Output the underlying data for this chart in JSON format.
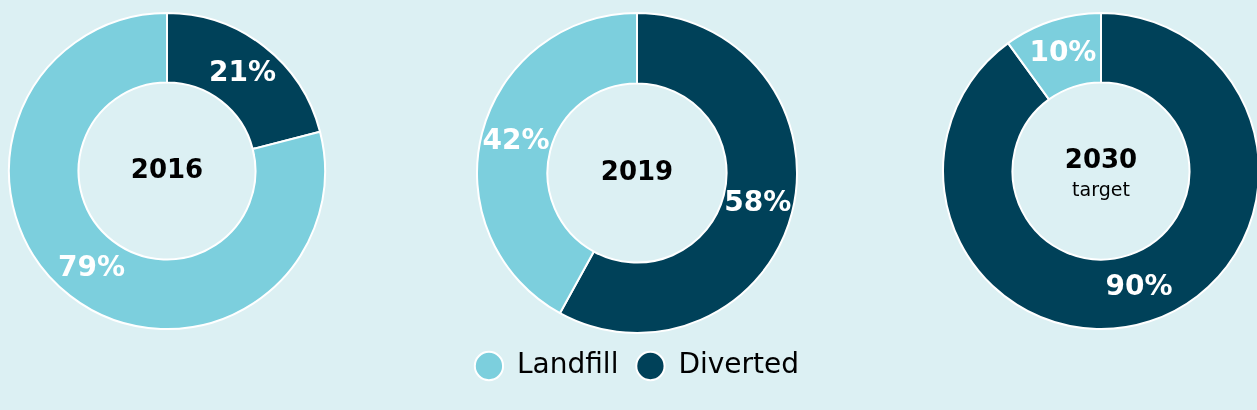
{
  "chart_data": [
    {
      "type": "donut",
      "title": "2016",
      "categories": [
        null,
        null
      ],
      "values": [
        21,
        79
      ],
      "colors": [
        "#004159",
        "#7ccfdd"
      ],
      "value_labels": [
        "21%",
        "79%"
      ]
    },
    {
      "type": "donut",
      "title": "2019",
      "categories": [
        "Diverted",
        "Landfill"
      ],
      "values": [
        58,
        42
      ],
      "colors": [
        "#004159",
        "#7ccfdd"
      ],
      "value_labels": [
        "58%",
        "42%"
      ],
      "legend": "bottom"
    },
    {
      "type": "donut",
      "title": "2030",
      "subtitle": "target",
      "categories": [
        null,
        null
      ],
      "values": [
        90,
        10
      ],
      "colors": [
        "#004159",
        "#7ccfdd"
      ],
      "value_labels": [
        "90%",
        "10%"
      ]
    }
  ]
}
